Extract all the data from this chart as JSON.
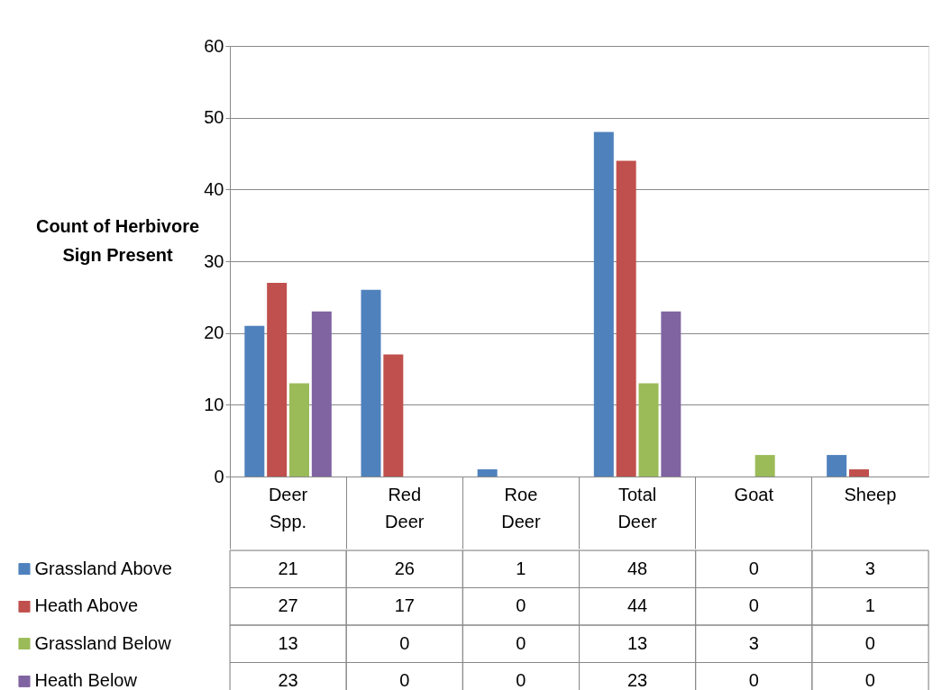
{
  "chart_data": {
    "type": "bar",
    "ylabel": "Count of Herbivore Sign Present",
    "categories": [
      "Deer Spp.",
      "Red Deer",
      "Roe Deer",
      "Total Deer",
      "Goat",
      "Sheep"
    ],
    "series": [
      {
        "name": "Grassland Above",
        "color": "#4f81bd",
        "values": [
          21,
          26,
          1,
          48,
          0,
          3
        ]
      },
      {
        "name": "Heath Above",
        "color": "#c0504d",
        "values": [
          27,
          17,
          0,
          44,
          0,
          1
        ]
      },
      {
        "name": "Grassland Below",
        "color": "#9bbb59",
        "values": [
          13,
          0,
          0,
          13,
          3,
          0
        ]
      },
      {
        "name": "Heath Below",
        "color": "#8064a2",
        "values": [
          23,
          0,
          0,
          23,
          0,
          0
        ]
      }
    ],
    "ylim": [
      0,
      60
    ],
    "yticks": [
      0,
      10,
      20,
      30,
      40,
      50,
      60
    ],
    "grid": "y",
    "data_labels": true,
    "legend": "bottom"
  }
}
